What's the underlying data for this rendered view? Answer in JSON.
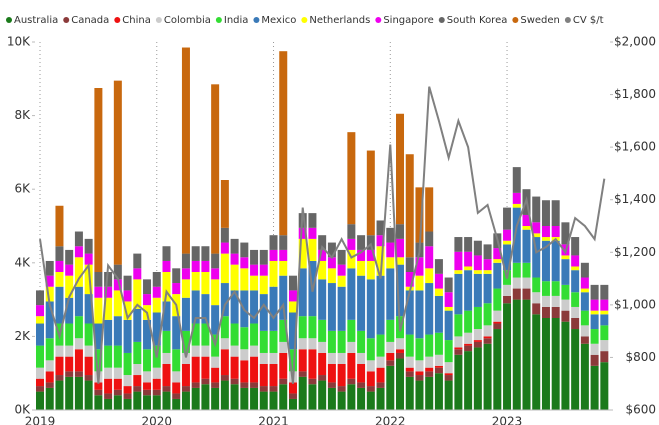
{
  "chart_data": {
    "type": "bar",
    "stacked": true,
    "categories": [
      "2019",
      null,
      null,
      null,
      null,
      null,
      null,
      null,
      null,
      null,
      null,
      null,
      "2020",
      null,
      null,
      null,
      null,
      null,
      null,
      null,
      null,
      null,
      null,
      null,
      "2021",
      null,
      null,
      null,
      null,
      null,
      null,
      null,
      null,
      null,
      null,
      null,
      "2022",
      null,
      null,
      null,
      null,
      null,
      null,
      null,
      null,
      null,
      null,
      null,
      "2023",
      null,
      null,
      null,
      null,
      null,
      null,
      null,
      null,
      null,
      null
    ],
    "ylim": [
      0,
      10000
    ],
    "yticks": [
      {
        "value": 0,
        "label": "0K"
      },
      {
        "value": 2000,
        "label": "2K"
      },
      {
        "value": 4000,
        "label": "4K"
      },
      {
        "value": 6000,
        "label": "6K"
      },
      {
        "value": 8000,
        "label": "8K"
      },
      {
        "value": 10000,
        "label": "10K"
      }
    ],
    "y2lim": [
      600,
      2000
    ],
    "y2ticks": [
      {
        "value": 600,
        "label": "$600"
      },
      {
        "value": 800,
        "label": "$800"
      },
      {
        "value": 1000,
        "label": "$1,000"
      },
      {
        "value": 1200,
        "label": "$1,200"
      },
      {
        "value": 1400,
        "label": "$1,400"
      },
      {
        "value": 1600,
        "label": "$1,600"
      },
      {
        "value": 1800,
        "label": "$1,800"
      },
      {
        "value": 2000,
        "label": "$2,000"
      }
    ],
    "legend": "top",
    "series": [
      {
        "name": "Australia",
        "color": "#1b7a1b",
        "values": [
          500,
          600,
          800,
          900,
          900,
          800,
          400,
          300,
          400,
          300,
          500,
          400,
          400,
          500,
          300,
          500,
          600,
          700,
          600,
          800,
          700,
          600,
          600,
          500,
          500,
          700,
          300,
          900,
          700,
          800,
          600,
          500,
          700,
          600,
          500,
          600,
          1200,
          1400,
          900,
          800,
          900,
          1000,
          800,
          1500,
          1600,
          1700,
          1800,
          2200,
          2900,
          3000,
          3000,
          2600,
          2500,
          2500,
          2400,
          2200,
          1800,
          1200,
          1300
        ]
      },
      {
        "name": "Canada",
        "color": "#8b3a3a",
        "values": [
          150,
          150,
          150,
          150,
          150,
          150,
          150,
          150,
          150,
          150,
          150,
          150,
          150,
          150,
          150,
          150,
          150,
          150,
          150,
          150,
          150,
          150,
          150,
          150,
          150,
          150,
          150,
          150,
          150,
          150,
          150,
          150,
          150,
          150,
          150,
          150,
          150,
          150,
          150,
          150,
          150,
          150,
          150,
          150,
          150,
          150,
          150,
          150,
          200,
          300,
          300,
          300,
          300,
          300,
          300,
          300,
          200,
          300,
          300
        ]
      },
      {
        "name": "China",
        "color": "#ee1111",
        "values": [
          200,
          300,
          500,
          400,
          600,
          500,
          200,
          400,
          300,
          200,
          300,
          200,
          300,
          600,
          300,
          600,
          700,
          600,
          400,
          700,
          600,
          600,
          700,
          600,
          600,
          700,
          300,
          600,
          800,
          600,
          500,
          600,
          700,
          500,
          400,
          400,
          200,
          100,
          100,
          100,
          100,
          50,
          50,
          50,
          50,
          50,
          50,
          50,
          0,
          0,
          0,
          0,
          0,
          0,
          0,
          0,
          0,
          0,
          0
        ]
      },
      {
        "name": "Colombia",
        "color": "#cccccc",
        "values": [
          300,
          300,
          300,
          300,
          300,
          300,
          300,
          300,
          300,
          300,
          300,
          300,
          300,
          300,
          300,
          300,
          300,
          300,
          300,
          300,
          300,
          300,
          300,
          300,
          300,
          300,
          300,
          300,
          300,
          300,
          300,
          300,
          300,
          300,
          300,
          300,
          300,
          300,
          300,
          300,
          300,
          300,
          300,
          300,
          300,
          300,
          300,
          300,
          300,
          300,
          300,
          300,
          300,
          300,
          300,
          300,
          300,
          300,
          300
        ]
      },
      {
        "name": "India",
        "color": "#33dd33",
        "values": [
          600,
          600,
          600,
          600,
          600,
          600,
          600,
          600,
          600,
          600,
          600,
          600,
          600,
          600,
          600,
          600,
          600,
          600,
          600,
          600,
          600,
          600,
          600,
          600,
          600,
          600,
          600,
          600,
          600,
          600,
          600,
          600,
          600,
          600,
          600,
          600,
          600,
          600,
          600,
          600,
          600,
          600,
          600,
          600,
          600,
          600,
          600,
          600,
          400,
          400,
          400,
          400,
          400,
          400,
          400,
          400,
          400,
          400,
          400
        ]
      },
      {
        "name": "Mexico",
        "color": "#3a7ab8",
        "values": [
          600,
          1000,
          1000,
          700,
          800,
          800,
          700,
          700,
          800,
          900,
          900,
          800,
          900,
          800,
          900,
          900,
          900,
          800,
          800,
          900,
          900,
          1000,
          900,
          1000,
          1200,
          1200,
          1000,
          1300,
          1500,
          1100,
          1300,
          1200,
          1400,
          1500,
          1600,
          1600,
          1400,
          1400,
          1200,
          1300,
          1400,
          1000,
          800,
          1100,
          1100,
          900,
          800,
          700,
          700,
          1500,
          900,
          1100,
          1100,
          1100,
          700,
          600,
          500,
          400,
          300
        ]
      },
      {
        "name": "Netherlands",
        "color": "#ffff00",
        "values": [
          200,
          400,
          400,
          600,
          800,
          800,
          700,
          600,
          700,
          500,
          800,
          400,
          400,
          800,
          600,
          500,
          500,
          600,
          700,
          800,
          700,
          600,
          400,
          500,
          700,
          400,
          300,
          800,
          600,
          500,
          400,
          300,
          500,
          400,
          500,
          800,
          300,
          200,
          100,
          400,
          400,
          200,
          100,
          100,
          100,
          100,
          100,
          100,
          100,
          100,
          100,
          100,
          100,
          100,
          100,
          100,
          100,
          100,
          100
        ]
      },
      {
        "name": "Singapore",
        "color": "#ee00ee",
        "values": [
          300,
          300,
          300,
          300,
          300,
          300,
          300,
          300,
          300,
          300,
          300,
          300,
          300,
          300,
          300,
          300,
          300,
          300,
          300,
          300,
          300,
          300,
          300,
          300,
          300,
          300,
          300,
          300,
          300,
          300,
          300,
          300,
          300,
          300,
          300,
          300,
          400,
          500,
          400,
          500,
          600,
          400,
          400,
          500,
          400,
          400,
          300,
          300,
          300,
          300,
          300,
          300,
          300,
          300,
          300,
          300,
          300,
          300,
          300
        ]
      },
      {
        "name": "South Korea",
        "color": "#666666",
        "values": [
          400,
          400,
          400,
          400,
          400,
          400,
          400,
          400,
          400,
          400,
          400,
          400,
          400,
          400,
          400,
          400,
          400,
          400,
          400,
          400,
          400,
          400,
          400,
          400,
          400,
          400,
          400,
          400,
          400,
          400,
          400,
          400,
          400,
          400,
          400,
          400,
          400,
          400,
          400,
          400,
          400,
          400,
          400,
          400,
          400,
          400,
          400,
          400,
          600,
          700,
          700,
          700,
          700,
          700,
          600,
          500,
          400,
          400,
          400
        ]
      },
      {
        "name": "Sweden",
        "color": "#c8680e",
        "values": [
          0,
          0,
          1100,
          0,
          0,
          0,
          5000,
          0,
          5000,
          0,
          0,
          0,
          0,
          0,
          0,
          5600,
          0,
          0,
          4600,
          1300,
          0,
          0,
          0,
          0,
          0,
          5000,
          0,
          0,
          0,
          0,
          0,
          0,
          2500,
          0,
          2300,
          0,
          0,
          3000,
          2800,
          1500,
          1200,
          0,
          0,
          0,
          0,
          0,
          0,
          0,
          0,
          0,
          0,
          0,
          0,
          0,
          0,
          0,
          0,
          0,
          0
        ]
      },
      {
        "name": "CV $/t",
        "color": "#808080",
        "type": "line",
        "axis": "y2",
        "values": [
          1250,
          1000,
          880,
          1030,
          1100,
          1150,
          700,
          1150,
          1100,
          950,
          1000,
          970,
          800,
          1050,
          1000,
          800,
          950,
          950,
          850,
          1000,
          1050,
          980,
          950,
          1000,
          950,
          1000,
          700,
          1370,
          1050,
          1220,
          1180,
          1250,
          1180,
          1200,
          1230,
          1100,
          1610,
          900,
          1050,
          1200,
          1830,
          1700,
          1560,
          1700,
          1600,
          1350,
          1380,
          1250,
          1100,
          1300,
          1400,
          1200,
          1220,
          1250,
          1200,
          1330,
          1300,
          1250,
          1480
        ]
      }
    ]
  }
}
